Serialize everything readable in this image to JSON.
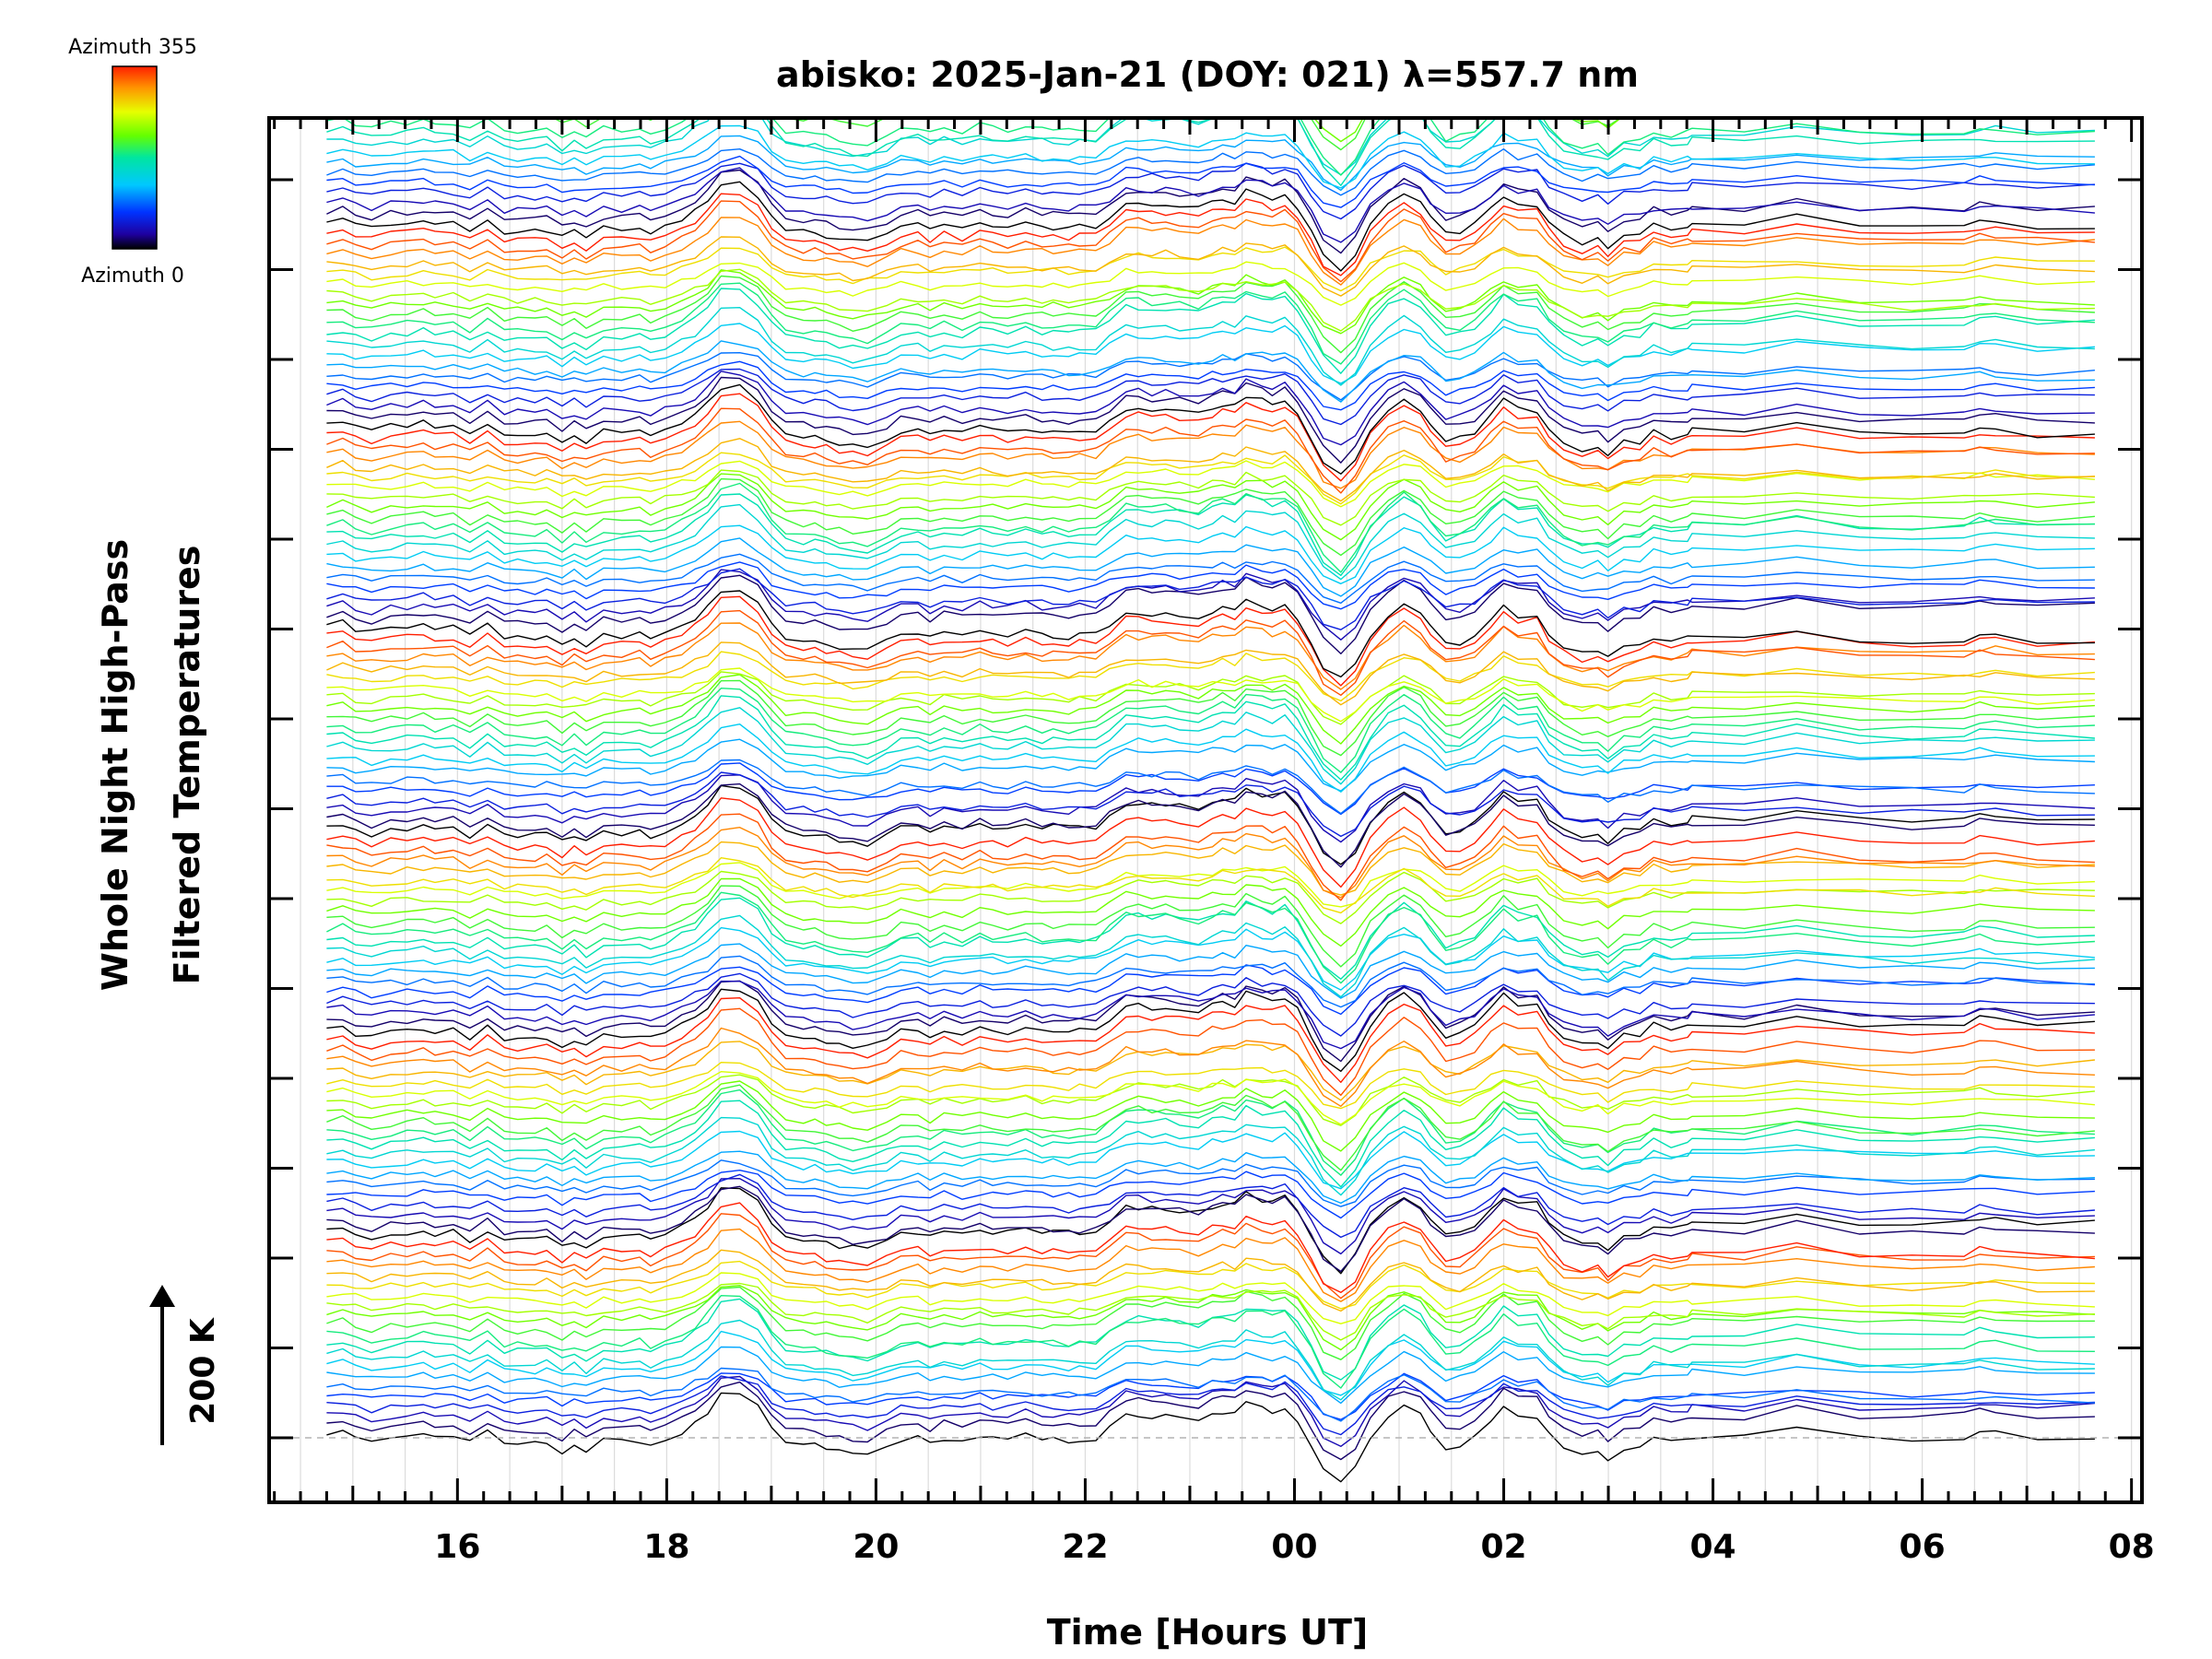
{
  "chart_data": {
    "type": "line",
    "title": "abisko: 2025-Jan-21 (DOY: 021) λ=557.7 nm",
    "xlabel": "Time [Hours UT]",
    "ylabel_line1": "Whole Night High-Pass",
    "ylabel_line2": "Filtered Temperatures",
    "x_tick_labels": [
      "16",
      "18",
      "20",
      "22",
      "00",
      "02",
      "04",
      "06",
      "08"
    ],
    "x_ticks_hours": [
      16,
      18,
      20,
      22,
      24,
      26,
      28,
      30,
      32
    ],
    "xlim_hours": [
      14.2,
      32.1
    ],
    "data_time_range_hours": [
      14.75,
      31.65
    ],
    "colorbar": {
      "top_label": "Azimuth 355",
      "bottom_label": "Azimuth 0",
      "azimuth_range": [
        0,
        355
      ]
    },
    "scale_bar": {
      "label": "200 K",
      "value_k": 200
    },
    "series_layout": {
      "groups": 7,
      "traces_per_group": 20,
      "group_spacing_k": 450,
      "trace_spacing_k": 22.5
    },
    "grid": "vertical dotted",
    "legend": "none"
  }
}
